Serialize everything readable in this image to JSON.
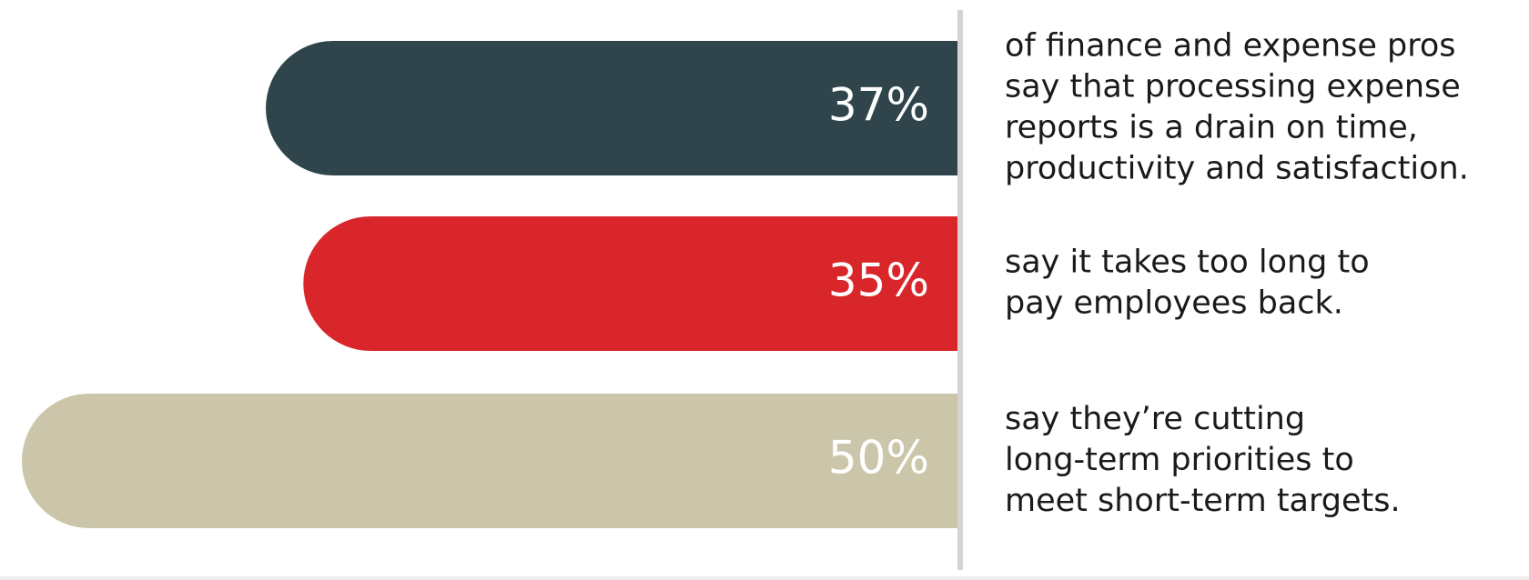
{
  "chart_data": {
    "type": "bar",
    "orientation": "horizontal",
    "categories": [
      [
        "of finance and expense pros",
        "say that processing expense",
        "reports is a drain on time,",
        "productivity and satisfaction."
      ],
      [
        "say it takes too long to",
        "pay employees back."
      ],
      [
        "say they’re cutting",
        "long-term priorities to",
        "meet short-term targets."
      ]
    ],
    "values": [
      37,
      35,
      50
    ],
    "value_labels": [
      "37%",
      "35%",
      "50%"
    ],
    "colors": [
      "#2f454b",
      "#d8262b",
      "#cbc5aa"
    ]
  }
}
